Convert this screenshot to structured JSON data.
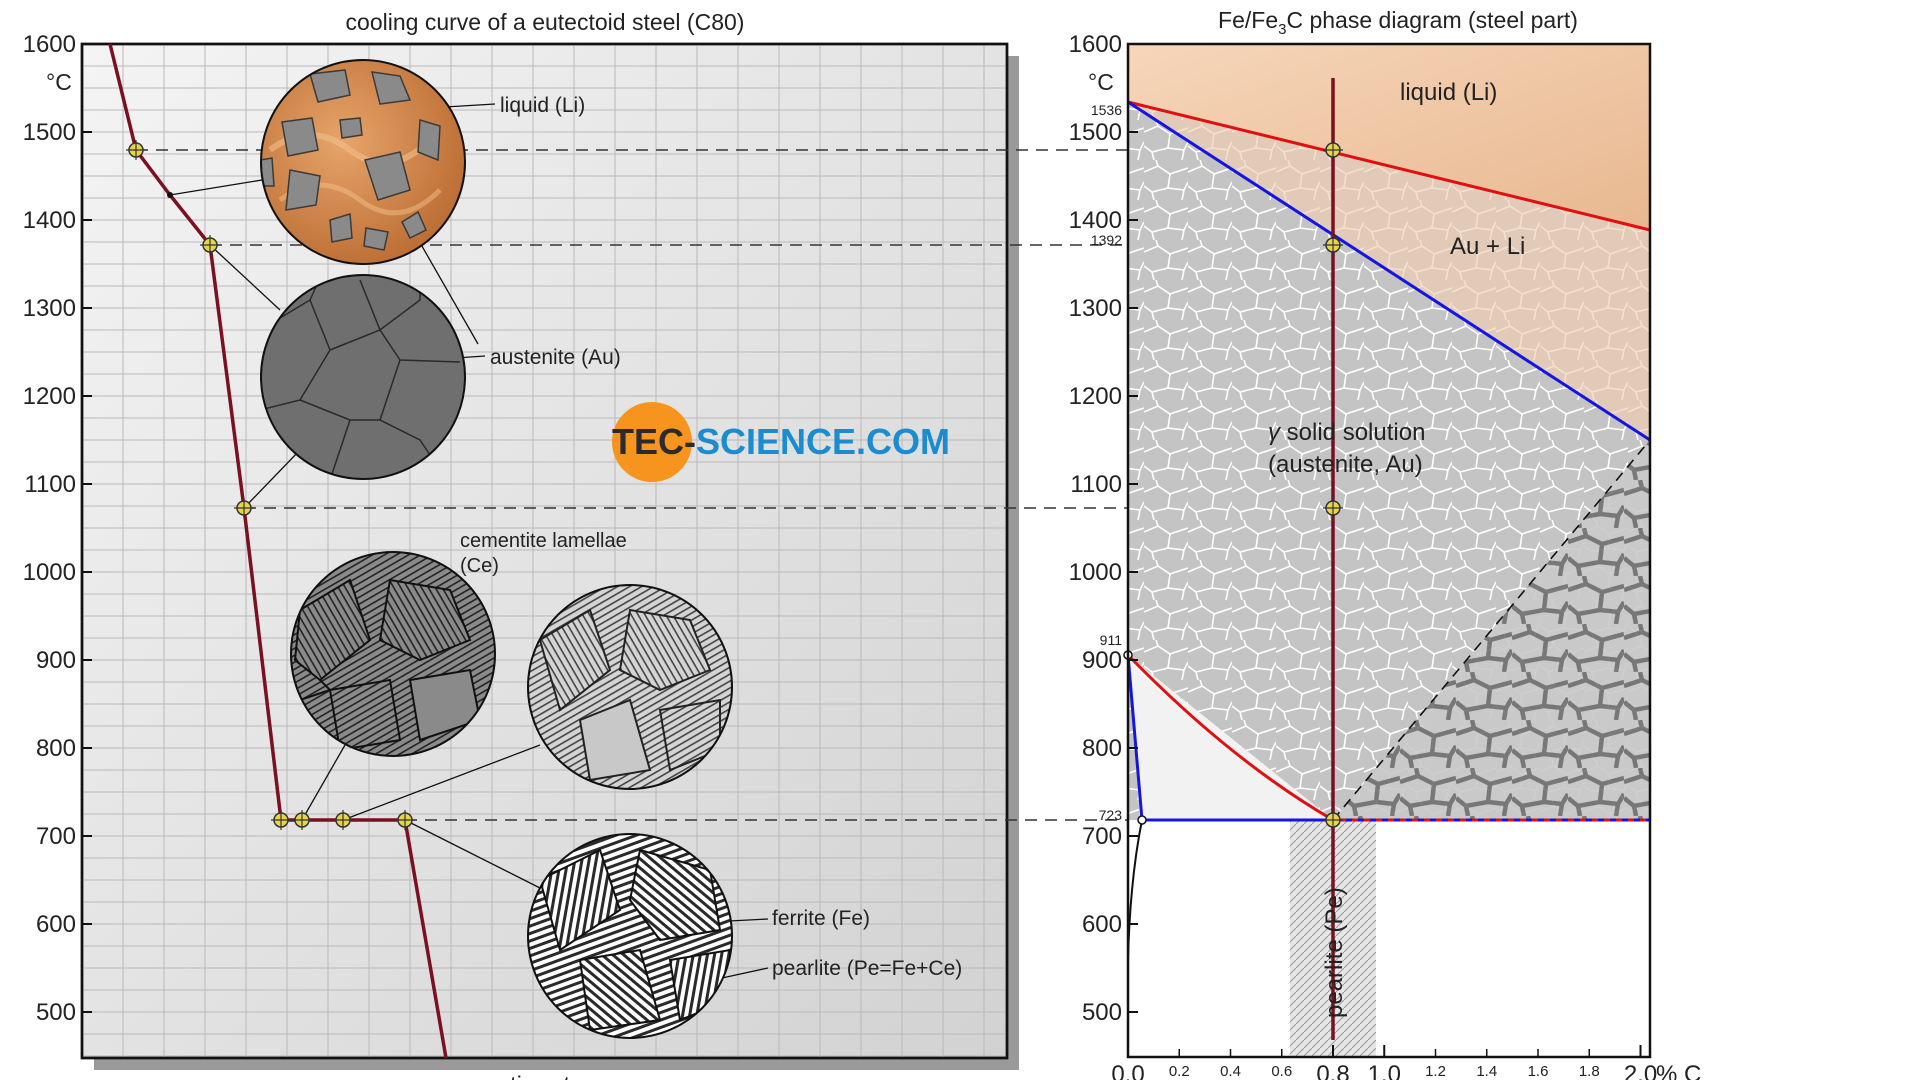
{
  "left_panel": {
    "title": "cooling curve of a eutectoid steel (C80)",
    "unit": "°C",
    "y_ticks": [
      "1600",
      "1500",
      "1400",
      "1300",
      "1200",
      "1100",
      "1000",
      "900",
      "800",
      "700",
      "600",
      "500"
    ],
    "xlabel_main": "time ",
    "xlabel_var": "t",
    "labels": {
      "liquid": "liquid (Li)",
      "austenite": "austenite (Au)",
      "cementite_line1": "cementite lamellae",
      "cementite_line2": "(Ce)",
      "ferrite": "ferrite (Fe)",
      "pearlite": "pearlite (Pe=Fe+Ce)"
    },
    "logo": {
      "part1": "tec-",
      "part2": "science",
      "part3": ".com",
      "orange": "#f7941d",
      "blue": "#1a8ccf",
      "dark": "#2b2b2b"
    }
  },
  "right_panel": {
    "title_part1": "Fe/Fe",
    "title_sub": "3",
    "title_part2": "C phase diagram (steel part)",
    "unit": "°C",
    "y_ticks": [
      "1600",
      "1500",
      "1400",
      "1300",
      "1200",
      "1100",
      "1000",
      "900",
      "800",
      "700",
      "600",
      "500"
    ],
    "x_ticks_major": [
      "0.0",
      "0.8",
      "1.0",
      "2.0"
    ],
    "x_ticks_minor": [
      "0.2",
      "0.4",
      "0.6",
      "1.2",
      "1.4",
      "1.6",
      "1.8"
    ],
    "x_unit": "% C",
    "special_temps": [
      "1536",
      "1392",
      "911",
      "723"
    ],
    "regions": {
      "liquid": "liquid (Li)",
      "au_li": "Au + Li",
      "gamma": "γ",
      "solid_solution": "solid solution",
      "austenite": "(austenite, Au)",
      "pearlite": "pearlite (Pe)"
    }
  },
  "colors": {
    "cooling_curve": "#7a1020",
    "liquidus": "#e01010",
    "solidus": "#1515e0",
    "marker": "#e8d44a",
    "liquid_fill": "#f0c8a8",
    "grain_fill": "#b8b8b8"
  }
}
